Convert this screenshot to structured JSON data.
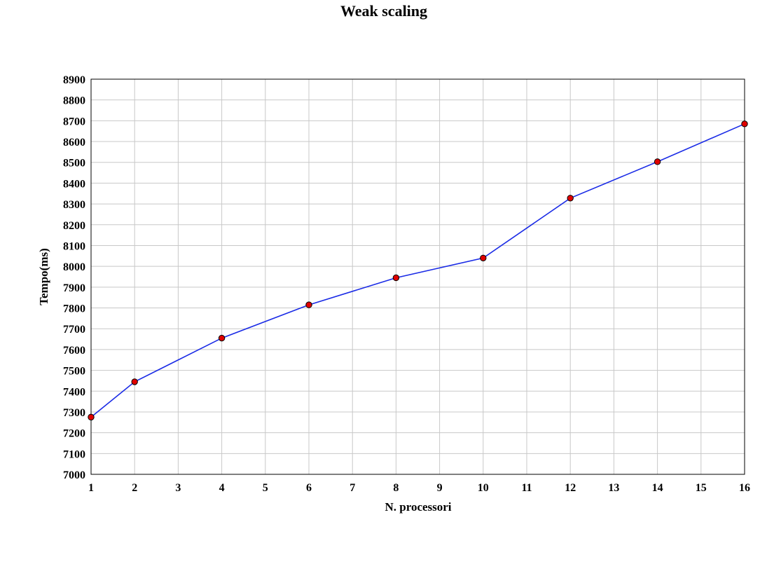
{
  "chart_data": {
    "type": "line",
    "title": "Weak scaling",
    "xlabel": "N. processori",
    "ylabel": "Tempo(ms)",
    "xlim": [
      1,
      16
    ],
    "ylim": [
      7000,
      8900
    ],
    "x_ticks": [
      1,
      2,
      3,
      4,
      5,
      6,
      7,
      8,
      9,
      10,
      11,
      12,
      13,
      14,
      15,
      16
    ],
    "y_ticks": [
      7000,
      7100,
      7200,
      7300,
      7400,
      7500,
      7600,
      7700,
      7800,
      7900,
      8000,
      8100,
      8200,
      8300,
      8400,
      8500,
      8600,
      8700,
      8800,
      8900
    ],
    "grid": true,
    "legend": "none",
    "series": [
      {
        "x": [
          1,
          2,
          4,
          6,
          8,
          10,
          12,
          14,
          16
        ],
        "y": [
          7275,
          7445,
          7655,
          7815,
          7945,
          8040,
          8328,
          8503,
          8685
        ],
        "line_color": "#1a2be6",
        "marker_color": "#e00000"
      }
    ]
  }
}
